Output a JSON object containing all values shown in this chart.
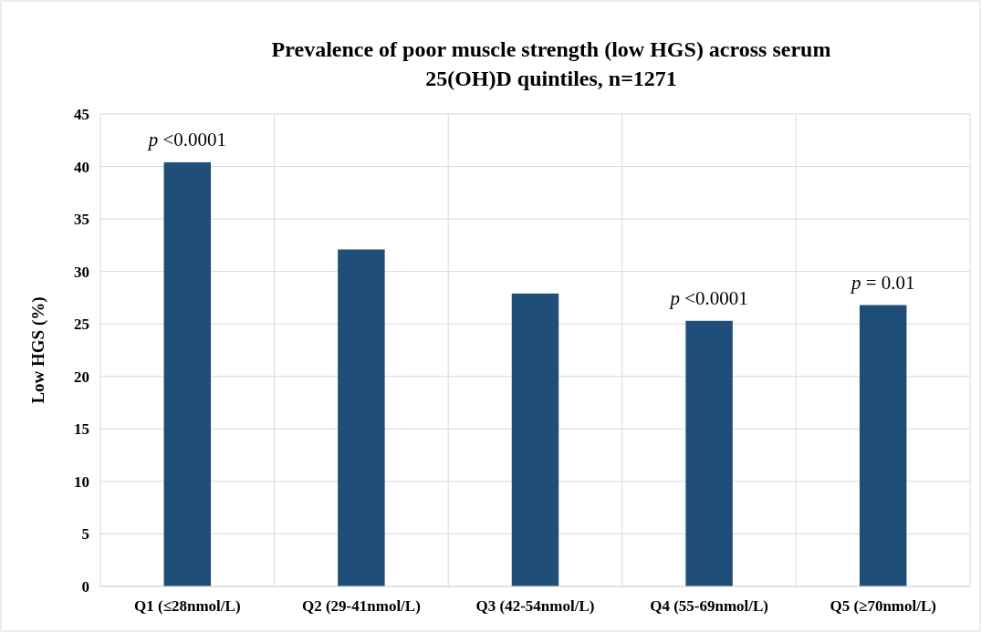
{
  "chart_data": {
    "type": "bar",
    "title": "Prevalence of poor muscle strength (low HGS) across serum 25(OH)D quintiles, n=1271",
    "ylabel": "Low HGS (%)",
    "categories": [
      "Q1 (≤28nmol/L)",
      "Q2 (29-41nmol/L)",
      "Q3 (42-54nmol/L)",
      "Q4 (55-69nmol/L)",
      "Q5 (≥70nmol/L)"
    ],
    "values": [
      40.4,
      32.1,
      27.9,
      25.3,
      26.8
    ],
    "color": "#1f4e79",
    "ylim": [
      0,
      45
    ],
    "yticks": [
      0,
      5,
      10,
      15,
      20,
      25,
      30,
      35,
      40,
      45
    ],
    "grid": true,
    "annotations": [
      {
        "text": "p <0.0001",
        "x": "Q1 (≤28nmol/L)",
        "y": 40.4
      },
      {
        "text": "p <0.0001",
        "x": "Q4 (55-69nmol/L)",
        "y": 25.3
      },
      {
        "text": "p = 0.01",
        "x": "Q5 (≥70nmol/L)",
        "y": 26.8
      }
    ]
  }
}
